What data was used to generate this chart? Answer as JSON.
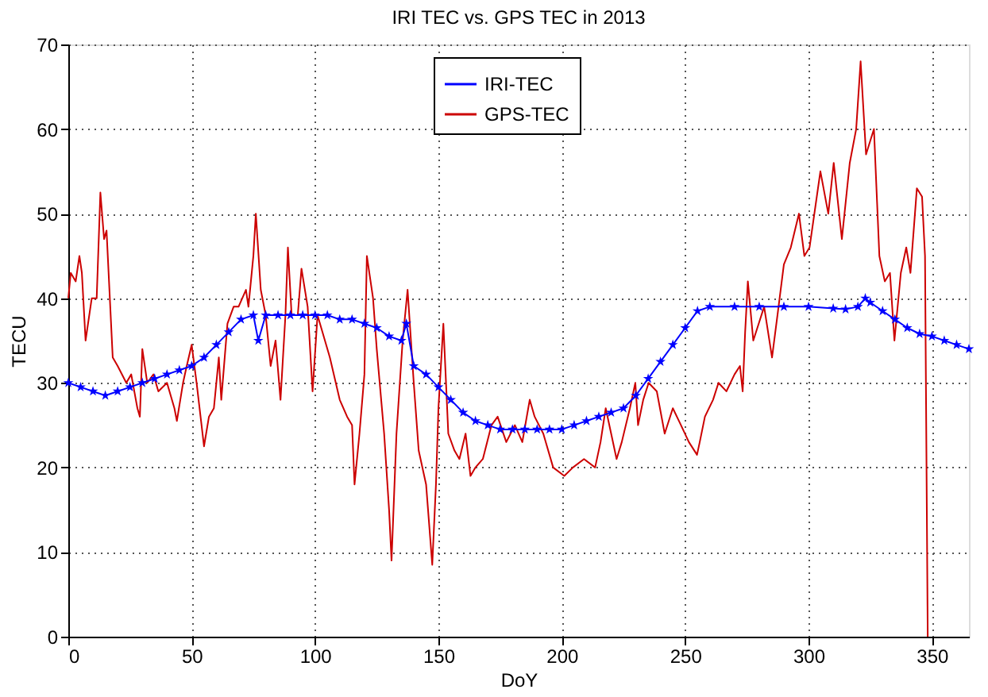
{
  "chart_data": {
    "type": "line",
    "title": "IRI TEC vs. GPS TEC in 2013",
    "xlabel": "DoY",
    "ylabel": "TECU",
    "xlim": [
      0,
      365
    ],
    "xticks": [
      0,
      50,
      100,
      150,
      200,
      250,
      300,
      350
    ],
    "ylim": [
      0,
      70
    ],
    "yticks": [
      0,
      10,
      20,
      30,
      40,
      50,
      60,
      70
    ],
    "grid": true,
    "legend": "top",
    "line_style": "solid",
    "series": [
      {
        "name": "IRI-TEC",
        "color": "#0000ff",
        "marker": "star",
        "x": [
          0,
          5,
          10,
          15,
          20,
          25,
          30,
          35,
          40,
          45,
          50,
          55,
          60,
          65,
          70,
          75,
          77,
          80,
          85,
          90,
          95,
          100,
          105,
          110,
          115,
          120,
          125,
          130,
          135,
          137,
          140,
          145,
          150,
          155,
          160,
          165,
          170,
          175,
          180,
          185,
          190,
          195,
          200,
          205,
          210,
          215,
          220,
          225,
          230,
          235,
          240,
          245,
          250,
          255,
          260,
          270,
          280,
          290,
          300,
          310,
          315,
          320,
          323,
          325,
          330,
          335,
          340,
          345,
          350,
          355,
          360,
          365
        ],
        "values": [
          30,
          29.5,
          29,
          28.5,
          29,
          29.5,
          30,
          30.5,
          31,
          31.5,
          32,
          33,
          34.5,
          36,
          37.5,
          38,
          35,
          38,
          38,
          38,
          38,
          38,
          38,
          37.5,
          37.5,
          37,
          36.5,
          35.5,
          35,
          37,
          32,
          31,
          29.5,
          28,
          26.5,
          25.5,
          25,
          24.5,
          24.5,
          24.5,
          24.5,
          24.5,
          24.5,
          25,
          25.5,
          26,
          26.5,
          27,
          28.5,
          30.5,
          32.5,
          34.5,
          36.5,
          38.5,
          39,
          39,
          39,
          39,
          39,
          38.8,
          38.7,
          39,
          40,
          39.5,
          38.5,
          37.5,
          36.5,
          35.8,
          35.5,
          35,
          34.5,
          34
        ]
      },
      {
        "name": "GPS-TEC",
        "color": "#cc0000",
        "marker": "none",
        "x": [
          0,
          1,
          3,
          4.5,
          5.5,
          7,
          9.5,
          11.5,
          13,
          14.5,
          15.5,
          18,
          20,
          23.5,
          25.5,
          28,
          29,
          30,
          32,
          34.5,
          36.5,
          40,
          43,
          44,
          46.5,
          48,
          50,
          52,
          55,
          57,
          59,
          61,
          62,
          64.5,
          67,
          69,
          72,
          73,
          75,
          76,
          78,
          80,
          82,
          84,
          86,
          88,
          89,
          90.5,
          93,
          94.5,
          97,
          99,
          101,
          106,
          110,
          113,
          115,
          116,
          118,
          120,
          121,
          123.5,
          125,
          128,
          130,
          131,
          133,
          135.5,
          137.5,
          140,
          142,
          145,
          147.5,
          149,
          150,
          152,
          154,
          156.5,
          158.5,
          161,
          163,
          165,
          168,
          171.5,
          174,
          177.5,
          181,
          184,
          187,
          189,
          192.5,
          196.5,
          201,
          204.5,
          209,
          213.5,
          215.7,
          217.8,
          220,
          222.2,
          224.3,
          227.6,
          229.8,
          230.9,
          233,
          235.2,
          238.5,
          241.7,
          245,
          248.3,
          251.5,
          254.8,
          255.9,
          258,
          261.3,
          263.5,
          266.7,
          270,
          272.2,
          273.3,
          274.3,
          275.4,
          277.6,
          279.8,
          282,
          285.2,
          287.4,
          290,
          292.8,
          296.1,
          298.3,
          300.4,
          304.8,
          308,
          310.2,
          313.5,
          316.7,
          319.3,
          321.1,
          323.3,
          326.5,
          328.7,
          330.9,
          333,
          334.8,
          337.4,
          339.6,
          341.3,
          343.9,
          346,
          347.2,
          348.3
        ],
        "values": [
          40,
          43,
          42,
          45,
          43,
          35,
          40,
          40,
          52.5,
          47,
          48,
          33,
          32,
          30,
          31,
          27,
          26,
          34,
          30,
          31,
          29,
          30,
          27,
          25.5,
          30,
          32,
          34.5,
          30,
          22.5,
          26,
          27,
          33,
          28,
          37,
          39,
          39,
          41,
          39,
          45,
          50,
          41,
          38,
          32,
          35,
          28,
          38,
          46,
          38,
          38,
          43.5,
          39,
          29,
          38,
          33,
          28,
          26,
          25,
          18,
          24,
          31,
          45,
          40,
          34,
          24,
          15,
          9,
          24,
          35,
          41,
          30,
          22,
          18,
          8.5,
          18,
          27,
          37,
          24,
          22,
          21,
          24,
          19,
          20,
          21,
          25,
          26,
          23,
          25,
          23,
          28,
          26,
          24,
          20,
          19,
          20,
          21,
          20,
          23,
          27,
          24,
          21,
          23,
          27,
          30,
          25,
          28,
          30,
          29,
          24,
          27,
          25,
          23,
          21.5,
          23,
          26,
          28,
          30,
          29,
          31,
          32,
          29,
          36,
          42,
          35,
          37,
          39,
          33,
          38,
          44,
          46,
          50,
          45,
          46,
          55,
          50,
          56,
          47,
          56,
          60,
          68,
          57,
          60,
          45,
          42,
          43,
          35,
          43,
          46,
          43,
          53,
          52,
          45,
          0
        ]
      }
    ]
  }
}
